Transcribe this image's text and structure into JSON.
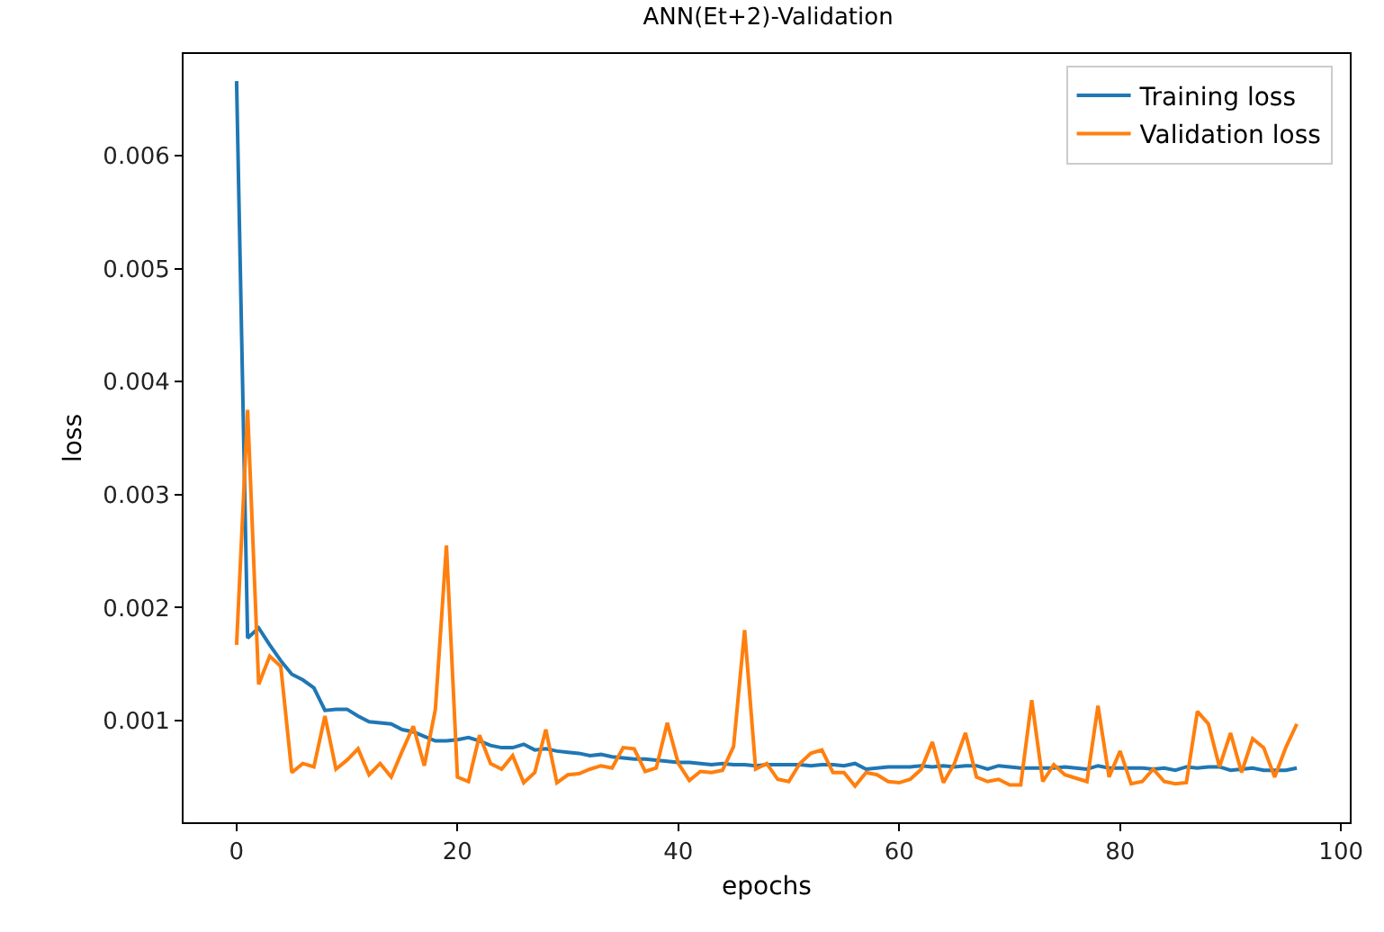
{
  "chart_data": {
    "type": "line",
    "title": "ANN(Et+2)-Validation",
    "xlabel": "epochs",
    "ylabel": "loss",
    "x": [
      0,
      1,
      2,
      3,
      4,
      5,
      6,
      7,
      8,
      9,
      10,
      11,
      12,
      13,
      14,
      15,
      16,
      17,
      18,
      19,
      20,
      21,
      22,
      23,
      24,
      25,
      26,
      27,
      28,
      29,
      30,
      31,
      32,
      33,
      34,
      35,
      36,
      37,
      38,
      39,
      40,
      41,
      42,
      43,
      44,
      45,
      46,
      47,
      48,
      49,
      50,
      51,
      52,
      53,
      54,
      55,
      56,
      57,
      58,
      59,
      60,
      61,
      62,
      63,
      64,
      65,
      66,
      67,
      68,
      69,
      70,
      71,
      72,
      73,
      74,
      75,
      76,
      77,
      78,
      79,
      80,
      81,
      82,
      83,
      84,
      85,
      86,
      87,
      88,
      89,
      90,
      91,
      92,
      93,
      94,
      95,
      96
    ],
    "series": [
      {
        "name": "Training loss",
        "color": "#1f77b4",
        "values": [
          0.00666,
          0.00173,
          0.00182,
          0.00167,
          0.00153,
          0.00141,
          0.00136,
          0.00129,
          0.00109,
          0.0011,
          0.0011,
          0.00104,
          0.00099,
          0.00098,
          0.00097,
          0.00092,
          0.0009,
          0.00086,
          0.00082,
          0.00082,
          0.00083,
          0.00085,
          0.00082,
          0.00078,
          0.00076,
          0.00076,
          0.00079,
          0.00074,
          0.00075,
          0.00073,
          0.00072,
          0.00071,
          0.00069,
          0.0007,
          0.00068,
          0.00067,
          0.00066,
          0.00066,
          0.00065,
          0.00064,
          0.00063,
          0.00063,
          0.00062,
          0.00061,
          0.00062,
          0.00061,
          0.00061,
          0.0006,
          0.00061,
          0.00061,
          0.00061,
          0.00061,
          0.0006,
          0.00061,
          0.00061,
          0.0006,
          0.00062,
          0.00057,
          0.00058,
          0.00059,
          0.00059,
          0.00059,
          0.0006,
          0.00059,
          0.0006,
          0.00059,
          0.0006,
          0.0006,
          0.00057,
          0.0006,
          0.00059,
          0.00058,
          0.00058,
          0.00058,
          0.00058,
          0.00059,
          0.00058,
          0.00057,
          0.0006,
          0.00058,
          0.00058,
          0.00058,
          0.00058,
          0.00057,
          0.00058,
          0.00056,
          0.00059,
          0.00058,
          0.00059,
          0.00059,
          0.00056,
          0.00057,
          0.00058,
          0.00056,
          0.00056,
          0.00056,
          0.00058
        ]
      },
      {
        "name": "Validation loss",
        "color": "#ff7f0e",
        "values": [
          0.00167,
          0.00375,
          0.00132,
          0.00157,
          0.00148,
          0.00054,
          0.00062,
          0.00059,
          0.00104,
          0.00057,
          0.00065,
          0.00075,
          0.00052,
          0.00062,
          0.0005,
          0.00073,
          0.00095,
          0.0006,
          0.0011,
          0.00255,
          0.0005,
          0.00046,
          0.00087,
          0.00062,
          0.00057,
          0.00069,
          0.00045,
          0.00054,
          0.00092,
          0.00045,
          0.00052,
          0.00053,
          0.00057,
          0.0006,
          0.00058,
          0.00076,
          0.00075,
          0.00055,
          0.00058,
          0.00098,
          0.00062,
          0.00047,
          0.00055,
          0.00054,
          0.00056,
          0.00077,
          0.0018,
          0.00057,
          0.00062,
          0.00048,
          0.00046,
          0.00062,
          0.00071,
          0.00074,
          0.00054,
          0.00054,
          0.00042,
          0.00054,
          0.00052,
          0.00046,
          0.00045,
          0.00048,
          0.00057,
          0.00081,
          0.00045,
          0.00062,
          0.00089,
          0.0005,
          0.00046,
          0.00048,
          0.00043,
          0.00043,
          0.00118,
          0.00046,
          0.00061,
          0.00052,
          0.00049,
          0.00046,
          0.00113,
          0.0005,
          0.00073,
          0.00044,
          0.00046,
          0.00057,
          0.00046,
          0.00044,
          0.00045,
          0.00108,
          0.00097,
          0.00059,
          0.00089,
          0.00054,
          0.00084,
          0.00076,
          0.0005,
          0.00076,
          0.00097
        ]
      }
    ],
    "xlim": [
      -4.8,
      100.8
    ],
    "xticks": [
      0,
      20,
      40,
      60,
      80,
      100
    ],
    "ylim": [
      0.0001,
      0.0069
    ],
    "yticks": [
      0.001,
      0.002,
      0.003,
      0.004,
      0.005,
      0.006
    ],
    "legend": "top right",
    "marker": "none",
    "line_style": "solid"
  }
}
